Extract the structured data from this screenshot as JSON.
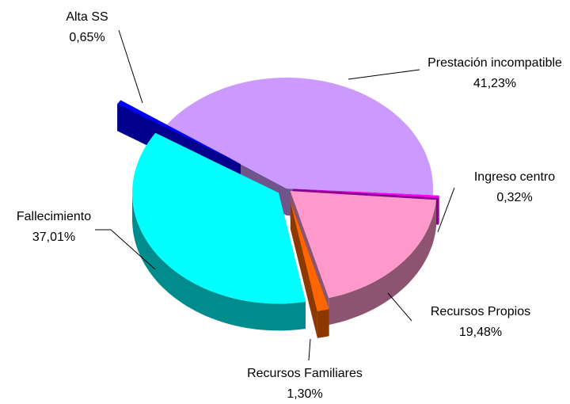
{
  "chart_data": {
    "type": "pie3d",
    "categories": [
      "Prestación incompatible",
      "Ingreso centro",
      "Recursos Propios",
      "Recursos Familiares",
      "Fallecimiento",
      "Alta SS"
    ],
    "values": [
      41.23,
      0.32,
      19.48,
      1.3,
      37.01,
      0.65
    ],
    "value_labels": [
      "41,23%",
      "0,32%",
      "19,48%",
      "1,30%",
      "37,01%",
      "0,65%"
    ],
    "colors": [
      "#cc99ff",
      "#ff00ff",
      "#ff99cc",
      "#ff6600",
      "#00ffff",
      "#0000ff"
    ]
  }
}
